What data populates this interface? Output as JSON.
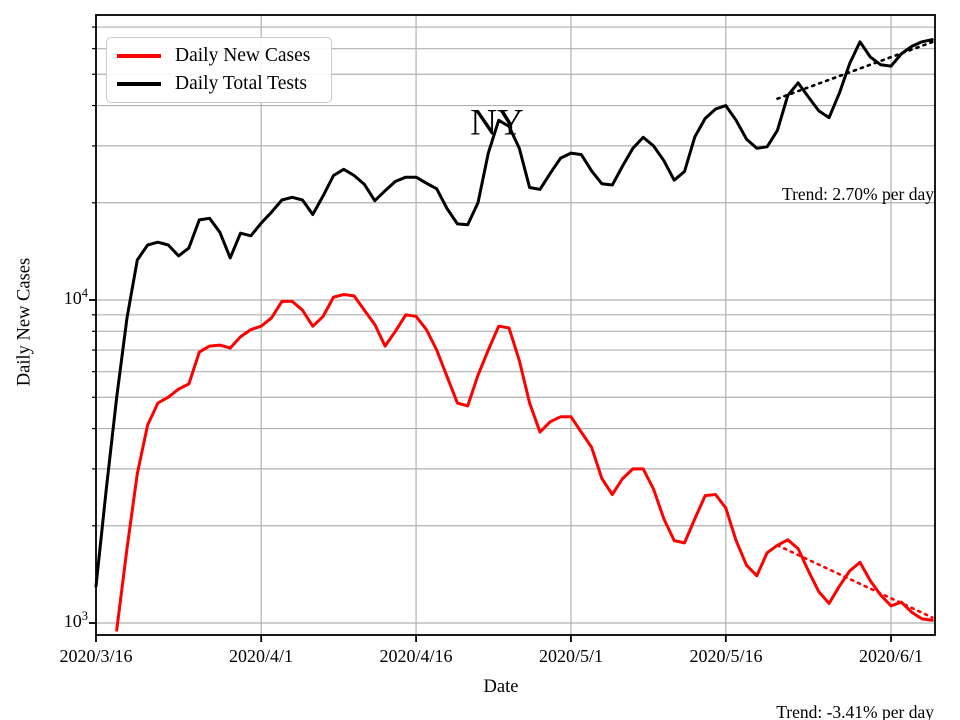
{
  "figure": {
    "region_label": "NY",
    "legend": {
      "items": [
        {
          "label": "Daily New Cases",
          "color": "#ff0000"
        },
        {
          "label": "Daily Total Tests",
          "color": "#000000"
        }
      ]
    },
    "axes": {
      "x_label": "Date",
      "y_label": "Daily New Cases",
      "y_ticks": [
        {
          "base": "10",
          "exp": "3",
          "value": 1000
        },
        {
          "base": "10",
          "exp": "4",
          "value": 10000
        }
      ]
    },
    "annotations": {
      "tests_trend_text": "Trend: 2.70% per day",
      "cases_trend_text": "Trend: -3.41% per day"
    }
  },
  "chart_data": {
    "type": "line",
    "title": "NY",
    "xlabel": "Date",
    "ylabel": "Daily New Cases",
    "y_scale": "log",
    "ylim": [
      918,
      76300
    ],
    "grid": {
      "color": "#b0b0b0",
      "major_y": [
        1000,
        10000
      ],
      "minor_y": [
        2000,
        3000,
        4000,
        5000,
        6000,
        7000,
        8000,
        9000,
        20000,
        30000,
        40000,
        50000,
        60000,
        70000
      ]
    },
    "x_ticks": [
      {
        "day": 0,
        "label": "2020/3/16"
      },
      {
        "day": 16,
        "label": "2020/4/1"
      },
      {
        "day": 31,
        "label": "2020/4/16"
      },
      {
        "day": 46,
        "label": "2020/5/1"
      },
      {
        "day": 61,
        "label": "2020/5/16"
      },
      {
        "day": 77,
        "label": "2020/6/1"
      }
    ],
    "dates": [
      "2020/3/16",
      "2020/3/17",
      "2020/3/18",
      "2020/3/19",
      "2020/3/20",
      "2020/3/21",
      "2020/3/22",
      "2020/3/23",
      "2020/3/24",
      "2020/3/25",
      "2020/3/26",
      "2020/3/27",
      "2020/3/28",
      "2020/3/29",
      "2020/3/30",
      "2020/3/31",
      "2020/4/1",
      "2020/4/2",
      "2020/4/3",
      "2020/4/4",
      "2020/4/5",
      "2020/4/6",
      "2020/4/7",
      "2020/4/8",
      "2020/4/9",
      "2020/4/10",
      "2020/4/11",
      "2020/4/12",
      "2020/4/13",
      "2020/4/14",
      "2020/4/15",
      "2020/4/16",
      "2020/4/17",
      "2020/4/18",
      "2020/4/19",
      "2020/4/20",
      "2020/4/21",
      "2020/4/22",
      "2020/4/23",
      "2020/4/24",
      "2020/4/25",
      "2020/4/26",
      "2020/4/27",
      "2020/4/28",
      "2020/4/29",
      "2020/4/30",
      "2020/5/1",
      "2020/5/2",
      "2020/5/3",
      "2020/5/4",
      "2020/5/5",
      "2020/5/6",
      "2020/5/7",
      "2020/5/8",
      "2020/5/9",
      "2020/5/10",
      "2020/5/11",
      "2020/5/12",
      "2020/5/13",
      "2020/5/14",
      "2020/5/15",
      "2020/5/16",
      "2020/5/17",
      "2020/5/18",
      "2020/5/19",
      "2020/5/20",
      "2020/5/21",
      "2020/5/22",
      "2020/5/23",
      "2020/5/24",
      "2020/5/25",
      "2020/5/26",
      "2020/5/27",
      "2020/5/28",
      "2020/5/29",
      "2020/5/30",
      "2020/5/31",
      "2020/6/1",
      "2020/6/2",
      "2020/6/3",
      "2020/6/4",
      "2020/6/5"
    ],
    "series": [
      {
        "name": "Daily New Cases",
        "color": "#ff0000",
        "values": [
          null,
          null,
          950,
          1700,
          2900,
          4100,
          4800,
          5000,
          5300,
          5500,
          6900,
          7200,
          7250,
          7100,
          7700,
          8100,
          8300,
          8800,
          9900,
          9900,
          9300,
          8300,
          8900,
          10200,
          10400,
          10300,
          9300,
          8400,
          7200,
          8000,
          9000,
          8900,
          8100,
          7000,
          5800,
          4800,
          4700,
          5850,
          7000,
          8300,
          8200,
          6500,
          4800,
          3900,
          4200,
          4350,
          4350,
          3900,
          3500,
          2800,
          2500,
          2800,
          3000,
          3000,
          2600,
          2100,
          1800,
          1770,
          2100,
          2480,
          2500,
          2270,
          1800,
          1510,
          1400,
          1650,
          1740,
          1810,
          1700,
          1450,
          1250,
          1150,
          1300,
          1450,
          1540,
          1350,
          1220,
          1130,
          1160,
          1080,
          1030,
          1020
        ]
      },
      {
        "name": "Daily Total Tests",
        "color": "#000000",
        "values": [
          1300,
          2600,
          5000,
          8800,
          13300,
          14800,
          15100,
          14800,
          13700,
          14500,
          17700,
          17900,
          16200,
          13500,
          16100,
          15800,
          17300,
          18700,
          20400,
          20800,
          20400,
          18400,
          21000,
          24300,
          25400,
          24300,
          22800,
          20300,
          21800,
          23300,
          24000,
          24000,
          23000,
          22100,
          19200,
          17200,
          17100,
          20000,
          28500,
          36000,
          34500,
          29500,
          22300,
          22000,
          24700,
          27500,
          28500,
          28200,
          25100,
          22900,
          22700,
          26000,
          29500,
          31900,
          30000,
          27000,
          23500,
          25000,
          32000,
          36500,
          39000,
          40000,
          36000,
          31500,
          29500,
          29800,
          33500,
          43000,
          47000,
          42500,
          38500,
          36700,
          43700,
          54000,
          63000,
          56500,
          53500,
          53000,
          57800,
          61000,
          63000,
          64000
        ]
      }
    ],
    "trend_lines": [
      {
        "name": "tests-trend",
        "color": "#000000",
        "style": "dotted",
        "rate_percent_per_day": 2.7,
        "start_day": 66,
        "end_day": 81,
        "start_value": 42000,
        "end_value": 62900,
        "label": "Trend: 2.70% per day"
      },
      {
        "name": "cases-trend",
        "color": "#ff0000",
        "style": "dotted",
        "rate_percent_per_day": -3.41,
        "start_day": 66,
        "end_day": 81,
        "start_value": 1740,
        "end_value": 1040,
        "label": "Trend: -3.41% per day"
      }
    ]
  }
}
